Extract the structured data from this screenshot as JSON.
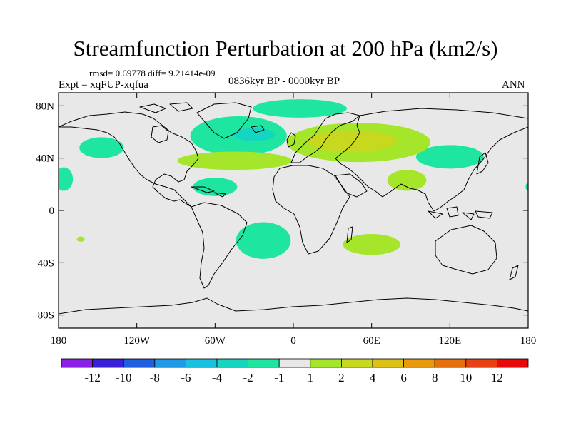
{
  "chart_data": {
    "type": "filled-contour-map",
    "title": "Streamfunction Perturbation at 200 hPa (km2/s)",
    "stats": "rmsd= 0.69778  diff= 9.21414e-09",
    "experiment": "Expt = xqFUP-xqfua",
    "period": "0836kyr BP - 0000kyr BP",
    "season": "ANN",
    "xlim": [
      -180,
      180
    ],
    "ylim": [
      -90,
      90
    ],
    "x_ticks": [
      {
        "value": -180,
        "label": "180"
      },
      {
        "value": -120,
        "label": "120W"
      },
      {
        "value": -60,
        "label": "60W"
      },
      {
        "value": 0,
        "label": "0"
      },
      {
        "value": 60,
        "label": "60E"
      },
      {
        "value": 120,
        "label": "120E"
      },
      {
        "value": 180,
        "label": "180"
      }
    ],
    "y_ticks": [
      {
        "value": 80,
        "label": "80N"
      },
      {
        "value": 40,
        "label": "40N"
      },
      {
        "value": 0,
        "label": "0"
      },
      {
        "value": -40,
        "label": "40S"
      },
      {
        "value": -80,
        "label": "80S"
      }
    ],
    "colorbar": {
      "colors": [
        "#8c1fe6",
        "#3a1fd9",
        "#1f5ee0",
        "#1f9ae6",
        "#17c2e0",
        "#14d6c0",
        "#1ee6a0",
        "#e8e8e8",
        "#a6e62a",
        "#c8d81e",
        "#dcc014",
        "#e89a0a",
        "#e8700a",
        "#e84010",
        "#e80a0a"
      ],
      "tick_labels": [
        "-12",
        "-10",
        "-8",
        "-6",
        "-4",
        "-2",
        "-1",
        "1",
        "2",
        "4",
        "6",
        "8",
        "10",
        "12"
      ]
    },
    "regions": [
      {
        "name": "north-atlantic-negative",
        "level": "-1",
        "lon": -42,
        "lat": 57,
        "rlon": 37,
        "rlat": 15,
        "color": "#1ee6a0"
      },
      {
        "name": "labrador-core-negative",
        "level": "-2",
        "lon": -30,
        "lat": 58,
        "rlon": 16,
        "rlat": 5,
        "color": "#14d6c0"
      },
      {
        "name": "arctic-negative",
        "level": "-1",
        "lon": 5,
        "lat": 78,
        "rlon": 36,
        "rlat": 7,
        "color": "#1ee6a0"
      },
      {
        "name": "pacific-negative",
        "level": "-1",
        "lon": -147,
        "lat": 48,
        "rlon": 17,
        "rlat": 8,
        "color": "#1ee6a0"
      },
      {
        "name": "hawaii-negative",
        "level": "-1",
        "lon": -176,
        "lat": 24,
        "rlon": 7,
        "rlat": 9,
        "color": "#1ee6a0"
      },
      {
        "name": "caribbean-negative",
        "level": "-1",
        "lon": -60,
        "lat": 18,
        "rlon": 17,
        "rlat": 7,
        "color": "#1ee6a0"
      },
      {
        "name": "south-atlantic-negative",
        "level": "-1",
        "lon": -23,
        "lat": -23,
        "rlon": 21,
        "rlat": 14,
        "color": "#1ee6a0"
      },
      {
        "name": "northwest-pacific-negative",
        "level": "-1",
        "lon": 120,
        "lat": 41,
        "rlon": 26,
        "rlat": 9,
        "color": "#1ee6a0"
      },
      {
        "name": "east-pacific-edge-negative",
        "level": "-1",
        "lon": 180,
        "lat": 18,
        "rlon": 2,
        "rlat": 3,
        "color": "#1ee6a0"
      },
      {
        "name": "eurasia-positive",
        "level": "1",
        "lon": 50,
        "lat": 52,
        "rlon": 55,
        "rlat": 15,
        "color": "#a6e62a"
      },
      {
        "name": "eurasia-core-positive",
        "level": "2",
        "lon": 45,
        "lat": 53,
        "rlon": 34,
        "rlat": 8,
        "color": "#c8d81e"
      },
      {
        "name": "atlantic-ridge-positive",
        "level": "1",
        "lon": -45,
        "lat": 38,
        "rlon": 44,
        "rlat": 7,
        "color": "#a6e62a"
      },
      {
        "name": "south-asia-positive",
        "level": "1",
        "lon": 87,
        "lat": 23,
        "rlon": 15,
        "rlat": 8,
        "color": "#a6e62a"
      },
      {
        "name": "south-indian-positive",
        "level": "1",
        "lon": 60,
        "lat": -26,
        "rlon": 22,
        "rlat": 8,
        "color": "#a6e62a"
      },
      {
        "name": "south-pacific-spot-positive",
        "level": "1",
        "lon": -163,
        "lat": -22,
        "rlon": 3,
        "rlat": 2,
        "color": "#a6e62a"
      }
    ]
  }
}
